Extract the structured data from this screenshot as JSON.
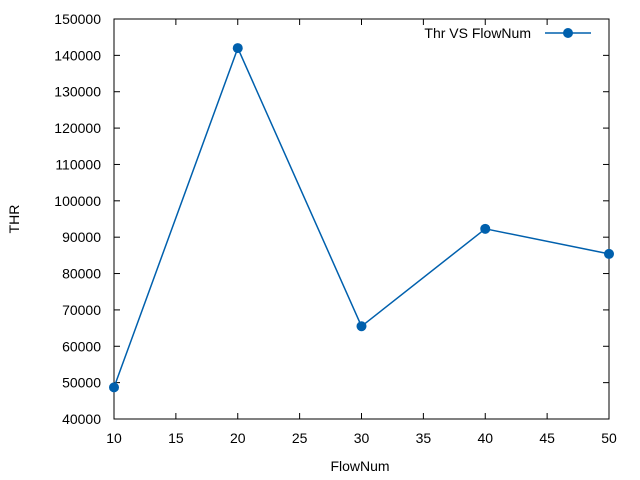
{
  "chart_data": {
    "type": "line",
    "title": "",
    "xlabel": "FlowNum",
    "ylabel": "THR",
    "xlim": [
      10,
      50
    ],
    "ylim": [
      40000,
      150000
    ],
    "xticks": [
      10,
      15,
      20,
      25,
      30,
      35,
      40,
      45,
      50
    ],
    "yticks": [
      40000,
      50000,
      60000,
      70000,
      80000,
      90000,
      100000,
      110000,
      120000,
      130000,
      140000,
      150000
    ],
    "grid": false,
    "legend_position": "top-right",
    "series": [
      {
        "name": "Thr VS FlowNum",
        "color": "#0060ad",
        "marker": "circle",
        "x": [
          10,
          20,
          30,
          40,
          50
        ],
        "y": [
          48700,
          142000,
          65500,
          92300,
          85400
        ]
      }
    ]
  }
}
